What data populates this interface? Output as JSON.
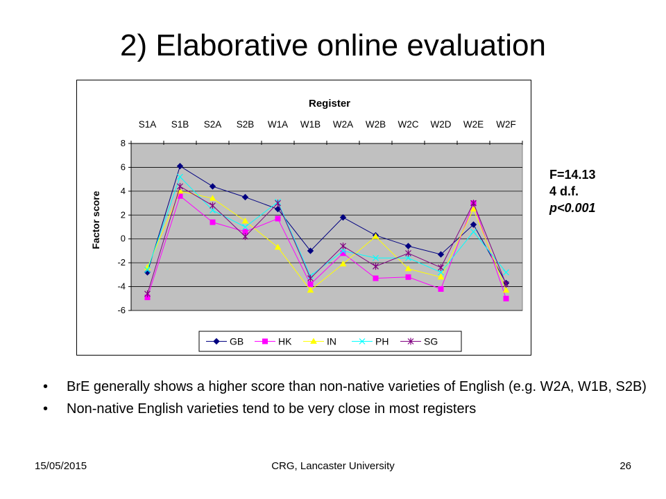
{
  "slide": {
    "title": "2) Elaborative online evaluation",
    "stats": [
      "F=14.13",
      "4 d.f.",
      "p<0.001"
    ],
    "bullets": [
      "BrE generally shows a higher score than non-native varieties of English (e.g. W2A, W1B, S2B)",
      "Non-native English varieties tend to be very close in most registers"
    ],
    "footer": {
      "date": "15/05/2015",
      "center": "CRG, Lancaster University",
      "page": "26"
    }
  },
  "chart_data": {
    "type": "line",
    "title": "Register",
    "xlabel": "",
    "ylabel": "Factor score",
    "categories": [
      "S1A",
      "S1B",
      "S2A",
      "S2B",
      "W1A",
      "W1B",
      "W2A",
      "W2B",
      "W2C",
      "W2D",
      "W2E",
      "W2F"
    ],
    "ylim": [
      -6,
      8
    ],
    "yticks": [
      -6,
      -4,
      -2,
      0,
      2,
      4,
      6,
      8
    ],
    "grid": "horizontal",
    "legend": "bottom",
    "series": [
      {
        "name": "GB",
        "color": "#000080",
        "marker": "diamond",
        "values": [
          -2.8,
          6.1,
          4.4,
          3.5,
          2.5,
          -1.0,
          1.8,
          0.3,
          -0.6,
          -1.3,
          1.2,
          -3.7
        ]
      },
      {
        "name": "HK",
        "color": "#ff00ff",
        "marker": "square",
        "values": [
          -4.9,
          3.6,
          1.4,
          0.6,
          1.7,
          -3.8,
          -1.2,
          -3.3,
          -3.2,
          -4.2,
          3.0,
          -5.0
        ]
      },
      {
        "name": "IN",
        "color": "#ffff00",
        "marker": "triangle",
        "values": [
          -2.4,
          4.0,
          3.4,
          1.5,
          -0.7,
          -4.3,
          -2.1,
          0.2,
          -2.5,
          -3.2,
          2.5,
          -4.3
        ]
      },
      {
        "name": "PH",
        "color": "#00ffff",
        "marker": "x",
        "values": [
          -2.6,
          5.2,
          2.4,
          1.0,
          3.1,
          -3.1,
          -1.0,
          -1.6,
          -1.6,
          -2.8,
          0.6,
          -2.8
        ]
      },
      {
        "name": "SG",
        "color": "#800080",
        "marker": "star",
        "values": [
          -4.6,
          4.4,
          2.8,
          0.2,
          3.0,
          -3.3,
          -0.6,
          -2.3,
          -1.2,
          -2.4,
          3.0,
          -3.8
        ]
      }
    ]
  }
}
